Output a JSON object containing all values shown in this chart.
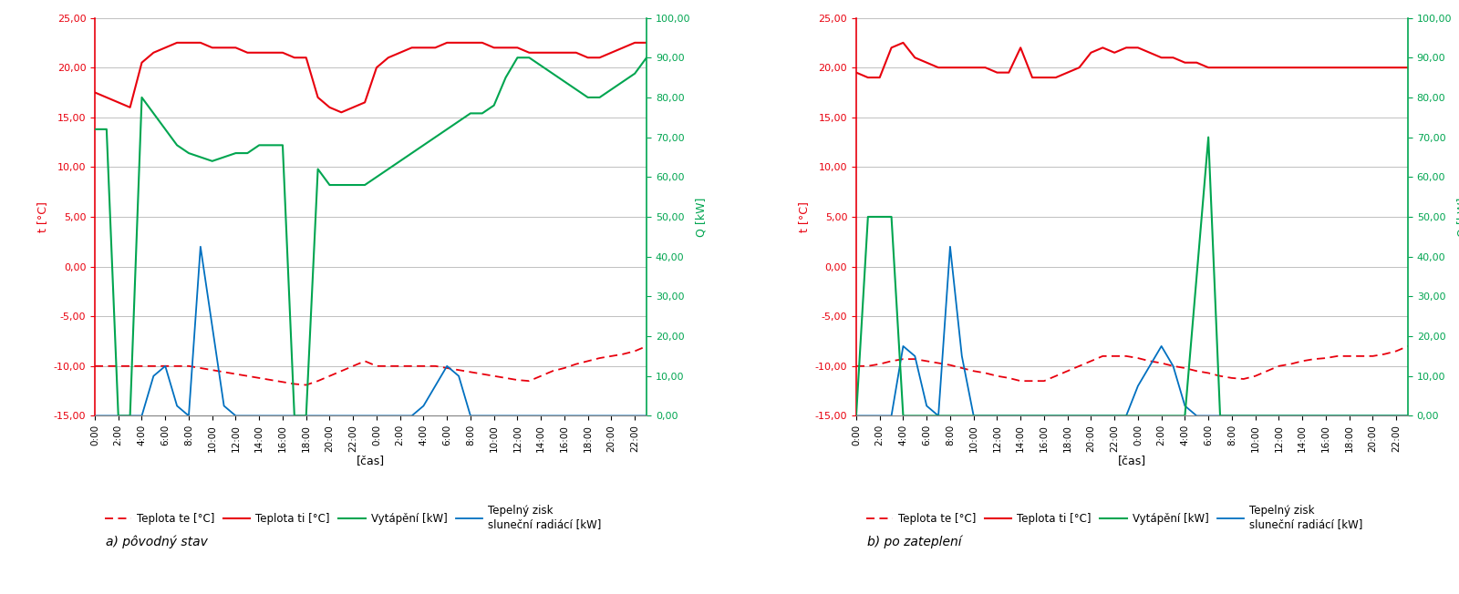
{
  "x_ticks": [
    "0:00",
    "2:00",
    "4:00",
    "6:00",
    "8:00",
    "10:00",
    "12:00",
    "14:00",
    "16:00",
    "18:00",
    "20:00",
    "22:00",
    "0:00",
    "2:00",
    "4:00",
    "6:00",
    "8:00",
    "10:00",
    "12:00",
    "14:00",
    "16:00",
    "18:00",
    "20:00",
    "22:00"
  ],
  "ylim_left": [
    -15,
    25
  ],
  "ylim_right": [
    0,
    100
  ],
  "yticks_left": [
    -15,
    -10,
    -5,
    0,
    5,
    10,
    15,
    20,
    25
  ],
  "yticks_right": [
    0,
    10,
    20,
    30,
    40,
    50,
    60,
    70,
    80,
    90,
    100
  ],
  "xlabel": "[čas]",
  "ylabel_left": "t [°C]",
  "ylabel_right": "Q [kW]",
  "legend_labels": [
    "Teplota te [°C]",
    "Teplota ti [°C]",
    "Vytápění [kW]",
    "Tepelný zisk\nsluneční radiácí [kW]"
  ],
  "subtitle_a": "a) pôvodný stav",
  "subtitle_b": "b) po zateplení",
  "color_te": "#e8000d",
  "color_ti": "#e8000d",
  "color_vytapeni": "#00a550",
  "color_solar": "#0070c0",
  "background": "#ffffff",
  "grid_color": "#c0c0c0",
  "a_te": [
    -10.0,
    -10.0,
    -10.0,
    -10.0,
    -10.0,
    -10.0,
    -10.0,
    -10.0,
    -10.0,
    -10.2,
    -10.4,
    -10.6,
    -10.8,
    -11.0,
    -11.2,
    -11.4,
    -11.6,
    -11.8,
    -11.9,
    -11.5,
    -11.0,
    -10.5,
    -10.0,
    -9.5,
    -10.0,
    -10.0,
    -10.0,
    -10.0,
    -10.0,
    -10.0,
    -10.2,
    -10.4,
    -10.6,
    -10.8,
    -11.0,
    -11.2,
    -11.4,
    -11.5,
    -11.0,
    -10.5,
    -10.2,
    -9.8,
    -9.5,
    -9.2,
    -9.0,
    -8.8,
    -8.5,
    -8.0
  ],
  "a_ti": [
    17.5,
    17.0,
    16.5,
    16.0,
    20.5,
    21.5,
    22.0,
    22.5,
    22.5,
    22.5,
    22.0,
    22.0,
    22.0,
    21.5,
    21.5,
    21.5,
    21.5,
    21.0,
    21.0,
    17.0,
    16.0,
    15.5,
    16.0,
    16.5,
    20.0,
    21.0,
    21.5,
    22.0,
    22.0,
    22.0,
    22.5,
    22.5,
    22.5,
    22.5,
    22.0,
    22.0,
    22.0,
    21.5,
    21.5,
    21.5,
    21.5,
    21.5,
    21.0,
    21.0,
    21.5,
    22.0,
    22.5,
    22.5
  ],
  "a_vytapeni": [
    72,
    72,
    0,
    0,
    80,
    76,
    72,
    68,
    66,
    65,
    64,
    65,
    66,
    66,
    68,
    68,
    68,
    0,
    0,
    62,
    58,
    58,
    58,
    58,
    60,
    62,
    64,
    66,
    68,
    70,
    72,
    74,
    76,
    76,
    78,
    85,
    90,
    90,
    88,
    86,
    84,
    82,
    80,
    80,
    82,
    84,
    86,
    90
  ],
  "a_solar": [
    -15,
    -15,
    -15,
    -15,
    -15,
    -11,
    -10,
    -14,
    -15,
    2,
    -6,
    -14,
    -15,
    -15,
    -15,
    -15,
    -15,
    -15,
    -15,
    -15,
    -15,
    -15,
    -15,
    -15,
    -15,
    -15,
    -15,
    -15,
    -14,
    -12,
    -10,
    -11,
    -15,
    -15,
    -15,
    -15,
    -15,
    -15,
    -15,
    -15,
    -15,
    -15,
    -15,
    -15,
    -15,
    -15,
    -15,
    -15
  ],
  "b_te": [
    -10.0,
    -10.0,
    -9.8,
    -9.5,
    -9.3,
    -9.3,
    -9.5,
    -9.7,
    -9.9,
    -10.2,
    -10.5,
    -10.7,
    -11.0,
    -11.2,
    -11.5,
    -11.5,
    -11.5,
    -11.0,
    -10.5,
    -10.0,
    -9.5,
    -9.0,
    -9.0,
    -9.0,
    -9.2,
    -9.5,
    -9.7,
    -10.0,
    -10.2,
    -10.5,
    -10.7,
    -11.0,
    -11.2,
    -11.3,
    -11.0,
    -10.5,
    -10.0,
    -9.8,
    -9.5,
    -9.3,
    -9.2,
    -9.0,
    -9.0,
    -9.0,
    -9.0,
    -8.8,
    -8.5,
    -8.0
  ],
  "b_ti": [
    19.5,
    19.0,
    19.0,
    22.0,
    22.5,
    21.0,
    20.5,
    20.0,
    20.0,
    20.0,
    20.0,
    20.0,
    19.5,
    19.5,
    22.0,
    19.0,
    19.0,
    19.0,
    19.5,
    20.0,
    21.5,
    22.0,
    21.5,
    22.0,
    22.0,
    21.5,
    21.0,
    21.0,
    20.5,
    20.5,
    20.0,
    20.0,
    20.0,
    20.0,
    20.0,
    20.0,
    20.0,
    20.0,
    20.0,
    20.0,
    20.0,
    20.0,
    20.0,
    20.0,
    20.0,
    20.0,
    20.0,
    20.0
  ],
  "b_vytapeni": [
    0,
    50,
    50,
    50,
    0,
    0,
    0,
    0,
    0,
    0,
    0,
    0,
    0,
    0,
    0,
    0,
    0,
    0,
    0,
    0,
    0,
    0,
    0,
    0,
    0,
    0,
    0,
    0,
    0,
    35,
    70,
    0,
    0,
    0,
    0,
    0,
    0,
    0,
    0,
    0,
    0,
    0,
    0,
    0,
    0,
    0,
    0,
    0
  ],
  "b_solar": [
    -15,
    -15,
    -15,
    -15,
    -8,
    -9,
    -14,
    -15,
    2,
    -9,
    -15,
    -15,
    -15,
    -15,
    -15,
    -15,
    -15,
    -15,
    -15,
    -15,
    -15,
    -15,
    -15,
    -15,
    -12,
    -10,
    -8,
    -10,
    -14,
    -15,
    -15,
    -15,
    -15,
    -15,
    -15,
    -15,
    -15,
    -15,
    -15,
    -15,
    -15,
    -15,
    -15,
    -15,
    -15,
    -15,
    -15,
    -15
  ]
}
